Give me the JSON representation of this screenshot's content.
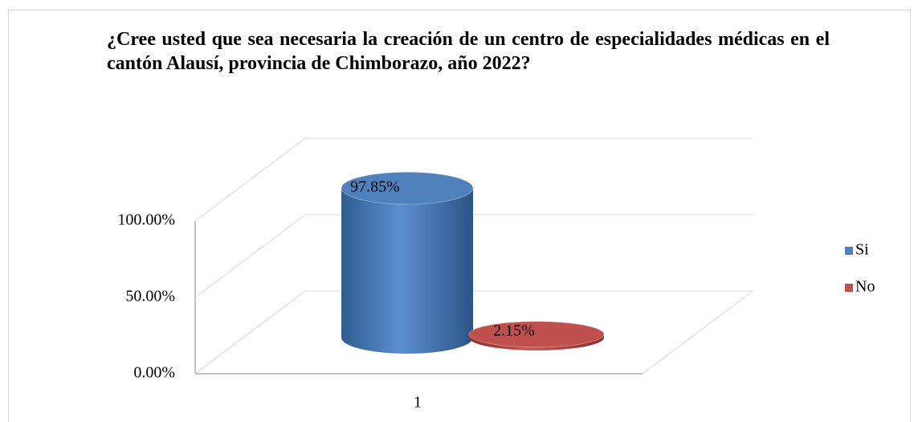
{
  "chart_data": {
    "type": "bar3d",
    "title": "¿Cree usted que sea necesaria la creación de un centro de especialidades médicas en el cantón Alausí, provincia de Chimborazo, año 2022?",
    "categories": [
      "1"
    ],
    "series": [
      {
        "name": "Si",
        "color": "#4f81bd",
        "values": [
          97.85
        ],
        "value_labels": [
          "97.85%"
        ]
      },
      {
        "name": "No",
        "color": "#c0504d",
        "values": [
          2.15
        ],
        "value_labels": [
          "2.15%"
        ]
      }
    ],
    "ylim": [
      0,
      100
    ],
    "yticks": [
      {
        "value": 0,
        "label": "0.00%"
      },
      {
        "value": 50,
        "label": "50.00%"
      },
      {
        "value": 100,
        "label": "100.00%"
      }
    ],
    "grid": true,
    "legend": "right"
  }
}
